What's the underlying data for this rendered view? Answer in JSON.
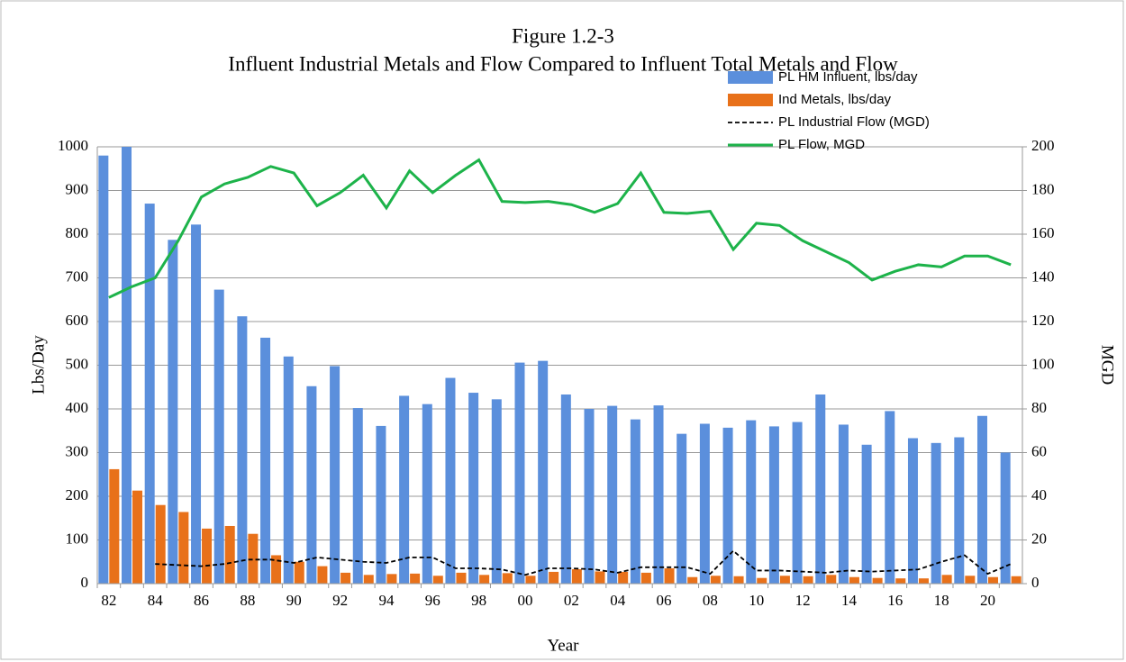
{
  "chart_data": {
    "type": "combo",
    "title": "Figure 1.2-3",
    "subtitle": "Influent Industrial Metals and Flow Compared to Influent Total Metals and Flow",
    "x_label": "Year",
    "y_label": "Lbs/Day",
    "y2_label": "MGD",
    "categories": [
      "82",
      null,
      "84",
      null,
      "86",
      null,
      "88",
      null,
      "90",
      null,
      "92",
      null,
      "94",
      null,
      "96",
      null,
      "98",
      null,
      "00",
      null,
      "02",
      null,
      "04",
      null,
      "06",
      null,
      "08",
      null,
      "10",
      null,
      "12",
      null,
      "14",
      null,
      "16",
      null,
      "18",
      null,
      "20",
      null
    ],
    "ylim": [
      0,
      1000
    ],
    "yticks": [
      0,
      100,
      200,
      300,
      400,
      500,
      600,
      700,
      800,
      900,
      1000
    ],
    "y2lim": [
      0,
      200
    ],
    "y2ticks": [
      0,
      20,
      40,
      60,
      80,
      100,
      120,
      140,
      160,
      180,
      200
    ],
    "grid": true,
    "legend": "top-right",
    "series": [
      {
        "name": "PL HM Influent, lbs/day",
        "type": "bar",
        "color": "#5b8fdc",
        "values": [
          980,
          1000,
          870,
          787,
          822,
          673,
          612,
          563,
          520,
          452,
          498,
          402,
          361,
          430,
          411,
          471,
          437,
          422,
          506,
          510,
          433,
          400,
          407,
          376,
          408,
          343,
          366,
          357,
          374,
          360,
          370,
          433,
          364,
          318,
          395,
          333,
          322,
          335,
          384,
          300
        ]
      },
      {
        "name": "Ind Metals, lbs/day",
        "type": "bar",
        "color": "#e8711a",
        "values": [
          262,
          213,
          180,
          164,
          126,
          132,
          114,
          65,
          50,
          40,
          25,
          20,
          22,
          23,
          18,
          25,
          20,
          24,
          18,
          27,
          33,
          28,
          27,
          25,
          35,
          15,
          18,
          17,
          13,
          18,
          17,
          20,
          15,
          13,
          12,
          12,
          20,
          18,
          15,
          17
        ]
      },
      {
        "name": "PL Industrial Flow (MGD)",
        "type": "line",
        "axis": "y2",
        "color": "#000000",
        "dashed": true,
        "values": [
          null,
          null,
          9,
          8.5,
          8,
          9,
          11,
          11,
          9.5,
          12,
          11,
          10,
          9.5,
          12,
          12,
          7,
          7,
          6.5,
          4,
          7,
          7,
          6.5,
          5,
          7.5,
          7.5,
          7.5,
          4.5,
          15,
          6,
          6,
          5.5,
          5,
          6,
          5.5,
          6,
          6.5,
          10,
          13,
          4.5,
          9
        ]
      },
      {
        "name": "PL Flow, MGD",
        "type": "line",
        "axis": "y2",
        "color": "#1db34a",
        "dashed": false,
        "values": [
          131,
          136,
          140,
          157,
          177,
          183,
          186,
          191,
          188,
          173,
          179,
          187,
          172,
          189,
          179,
          187,
          194,
          175,
          174.5,
          175,
          173.5,
          170,
          174,
          188,
          170,
          169.5,
          170.5,
          153,
          165,
          164,
          157,
          152,
          147,
          139,
          143,
          146,
          145,
          150,
          150,
          146
        ]
      }
    ]
  }
}
